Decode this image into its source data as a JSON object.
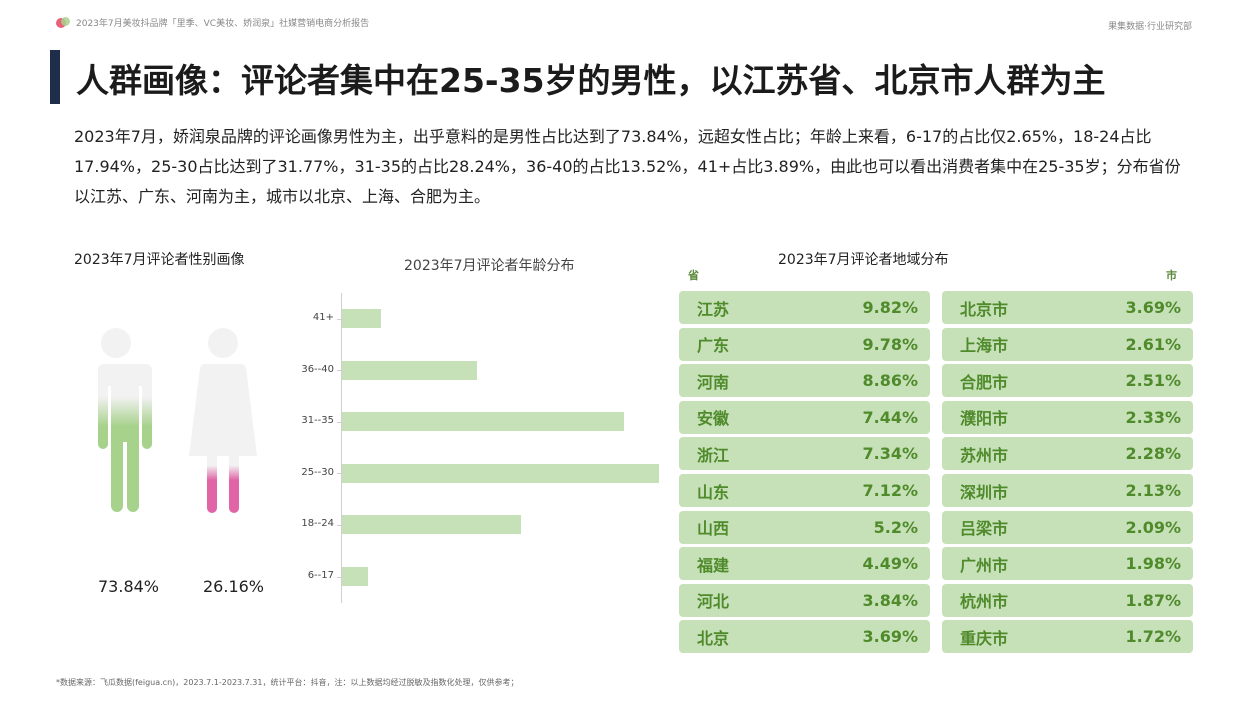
{
  "header": {
    "report_title": "2023年7月美妆抖品牌「里季、VC美妆、娇润泉」社媒营销电商分析报告",
    "brand": "果集数据·行业研究部"
  },
  "page_title": "人群画像：评论者集中在25-35岁的男性，以江苏省、北京市人群为主",
  "summary": "2023年7月，娇润泉品牌的评论画像男性为主，出乎意料的是男性占比达到了73.84%，远超女性占比；年龄上来看，6-17的占比仅2.65%，18-24占比17.94%，25-30占比达到了31.77%，31-35的占比28.24%，36-40的占比13.52%，41+占比3.89%，由此也可以看出消费者集中在25-35岁；分布省份以江苏、广东、河南为主，城市以北京、上海、合肥为主。",
  "gender": {
    "title": "2023年7月评论者性别画像",
    "male_pct": "73.84%",
    "female_pct": "26.16%",
    "male_value": 73.84,
    "female_value": 26.16,
    "male_color": "#a7d28c",
    "female_color": "#e064a6",
    "icons": [
      "male-figure-icon",
      "female-figure-icon"
    ]
  },
  "chart_data": {
    "type": "bar",
    "orientation": "horizontal",
    "title": "2023年7月评论者年龄分布",
    "categories": [
      "41+",
      "36--40",
      "31--35",
      "25--30",
      "18--24",
      "6--17"
    ],
    "values": [
      3.89,
      13.52,
      28.24,
      31.77,
      17.94,
      2.65
    ],
    "xlim": [
      0,
      31.77
    ],
    "color": "#c6e1b8",
    "grid": false
  },
  "region": {
    "title": "2023年7月评论者地域分布",
    "province_head": "省",
    "city_head": "市",
    "color": "#c6e1b8",
    "provinces": [
      {
        "name": "江苏",
        "value": "9.82%"
      },
      {
        "name": "广东",
        "value": "9.78%"
      },
      {
        "name": "河南",
        "value": "8.86%"
      },
      {
        "name": "安徽",
        "value": "7.44%"
      },
      {
        "name": "浙江",
        "value": "7.34%"
      },
      {
        "name": "山东",
        "value": "7.12%"
      },
      {
        "name": "山西",
        "value": "5.2%"
      },
      {
        "name": "福建",
        "value": "4.49%"
      },
      {
        "name": "河北",
        "value": "3.84%"
      },
      {
        "name": "北京",
        "value": "3.69%"
      }
    ],
    "cities": [
      {
        "name": "北京市",
        "value": "3.69%"
      },
      {
        "name": "上海市",
        "value": "2.61%"
      },
      {
        "name": "合肥市",
        "value": "2.51%"
      },
      {
        "name": "濮阳市",
        "value": "2.33%"
      },
      {
        "name": "苏州市",
        "value": "2.28%"
      },
      {
        "name": "深圳市",
        "value": "2.13%"
      },
      {
        "name": "吕梁市",
        "value": "2.09%"
      },
      {
        "name": "广州市",
        "value": "1.98%"
      },
      {
        "name": "杭州市",
        "value": "1.87%"
      },
      {
        "name": "重庆市",
        "value": "1.72%"
      }
    ]
  },
  "footnote": "*数据来源：飞瓜数据(feigua.cn)，2023.7.1-2023.7.31，统计平台：抖音，注：以上数据均经过脱敏及指数化处理，仅供参考；"
}
